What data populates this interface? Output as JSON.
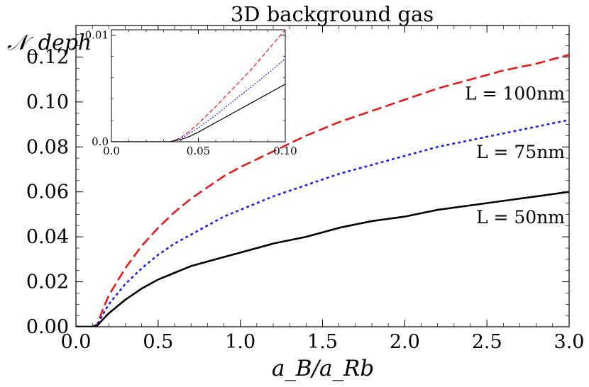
{
  "chart_data": {
    "type": "line",
    "title": "3D background gas",
    "xlabel": "a_B/a_Rb",
    "ylabel": "𝒩_deph",
    "xlim": [
      0.0,
      3.0
    ],
    "ylim": [
      0.0,
      0.134
    ],
    "grid": false,
    "xticks": [
      0.0,
      0.5,
      1.0,
      1.5,
      2.0,
      2.5,
      3.0
    ],
    "xtick_labels": [
      "0.0",
      "0.5",
      "1.0",
      "1.5",
      "2.0",
      "2.5",
      "3.0"
    ],
    "yticks": [
      0.0,
      0.02,
      0.04,
      0.06,
      0.08,
      0.1,
      0.12
    ],
    "ytick_labels": [
      "0.00",
      "0.02",
      "0.04",
      "0.06",
      "0.08",
      "0.10",
      "0.12"
    ],
    "series": [
      {
        "name": "L = 100nm",
        "color": "#e41a1c",
        "dash": "dashed",
        "x": [
          0.0,
          0.1,
          0.13,
          0.16,
          0.2,
          0.3,
          0.4,
          0.5,
          0.6,
          0.7,
          0.8,
          0.9,
          1.0,
          1.2,
          1.4,
          1.6,
          1.8,
          2.0,
          2.2,
          2.4,
          2.6,
          2.8,
          3.0
        ],
        "y": [
          0.0,
          0.0,
          0.001,
          0.007,
          0.014,
          0.026,
          0.036,
          0.044,
          0.051,
          0.057,
          0.062,
          0.067,
          0.071,
          0.078,
          0.085,
          0.091,
          0.096,
          0.101,
          0.106,
          0.11,
          0.114,
          0.117,
          0.121
        ]
      },
      {
        "name": "L = 75nm",
        "color": "#1f1fdd",
        "dash": "dotted",
        "x": [
          0.0,
          0.1,
          0.13,
          0.16,
          0.2,
          0.3,
          0.4,
          0.5,
          0.6,
          0.7,
          0.8,
          0.9,
          1.0,
          1.2,
          1.4,
          1.6,
          1.8,
          2.0,
          2.2,
          2.4,
          2.6,
          2.8,
          3.0
        ],
        "y": [
          0.0,
          0.0,
          0.001,
          0.005,
          0.01,
          0.019,
          0.026,
          0.032,
          0.037,
          0.041,
          0.045,
          0.049,
          0.052,
          0.058,
          0.063,
          0.068,
          0.072,
          0.076,
          0.08,
          0.083,
          0.086,
          0.089,
          0.092
        ]
      },
      {
        "name": "L = 50nm",
        "color": "#000000",
        "dash": "solid",
        "x": [
          0.0,
          0.1,
          0.13,
          0.16,
          0.2,
          0.3,
          0.4,
          0.5,
          0.6,
          0.7,
          0.8,
          0.9,
          1.0,
          1.2,
          1.4,
          1.6,
          1.8,
          2.0,
          2.2,
          2.4,
          2.6,
          2.8,
          3.0
        ],
        "y": [
          0.0,
          0.0,
          0.0005,
          0.003,
          0.006,
          0.012,
          0.017,
          0.021,
          0.024,
          0.027,
          0.029,
          0.031,
          0.033,
          0.037,
          0.04,
          0.044,
          0.047,
          0.049,
          0.052,
          0.054,
          0.056,
          0.058,
          0.06
        ]
      }
    ],
    "inset": {
      "type": "line",
      "xlim": [
        0.0,
        0.1
      ],
      "ylim": [
        0.0,
        0.0105
      ],
      "xticks": [
        0.0,
        0.05,
        0.1
      ],
      "xtick_labels": [
        "0.0",
        "0.05",
        "0.10"
      ],
      "yticks": [
        0.0,
        0.01
      ],
      "ytick_labels": [
        "0.0",
        "0.01"
      ],
      "series": [
        {
          "name": "L = 100nm",
          "color": "#e41a1c",
          "dash": "dashed",
          "x": [
            0.0,
            0.034,
            0.036,
            0.04,
            0.045,
            0.05,
            0.06,
            0.07,
            0.08,
            0.09,
            0.1
          ],
          "y": [
            0.0,
            0.0,
            0.0001,
            0.0004,
            0.001,
            0.0017,
            0.0033,
            0.005,
            0.0067,
            0.0086,
            0.0105
          ]
        },
        {
          "name": "L = 75nm",
          "color": "#1f1fdd",
          "dash": "dotted",
          "x": [
            0.0,
            0.034,
            0.036,
            0.04,
            0.045,
            0.05,
            0.06,
            0.07,
            0.08,
            0.09,
            0.1
          ],
          "y": [
            0.0,
            0.0,
            0.0001,
            0.0003,
            0.0008,
            0.0013,
            0.0025,
            0.0038,
            0.0051,
            0.0064,
            0.0078
          ]
        },
        {
          "name": "L = 50nm",
          "color": "#000000",
          "dash": "solid",
          "x": [
            0.0,
            0.034,
            0.036,
            0.04,
            0.045,
            0.05,
            0.06,
            0.07,
            0.08,
            0.09,
            0.1
          ],
          "y": [
            0.0,
            0.0,
            0.0001,
            0.0002,
            0.0005,
            0.0009,
            0.0018,
            0.0027,
            0.0036,
            0.0045,
            0.0054
          ]
        }
      ]
    }
  }
}
